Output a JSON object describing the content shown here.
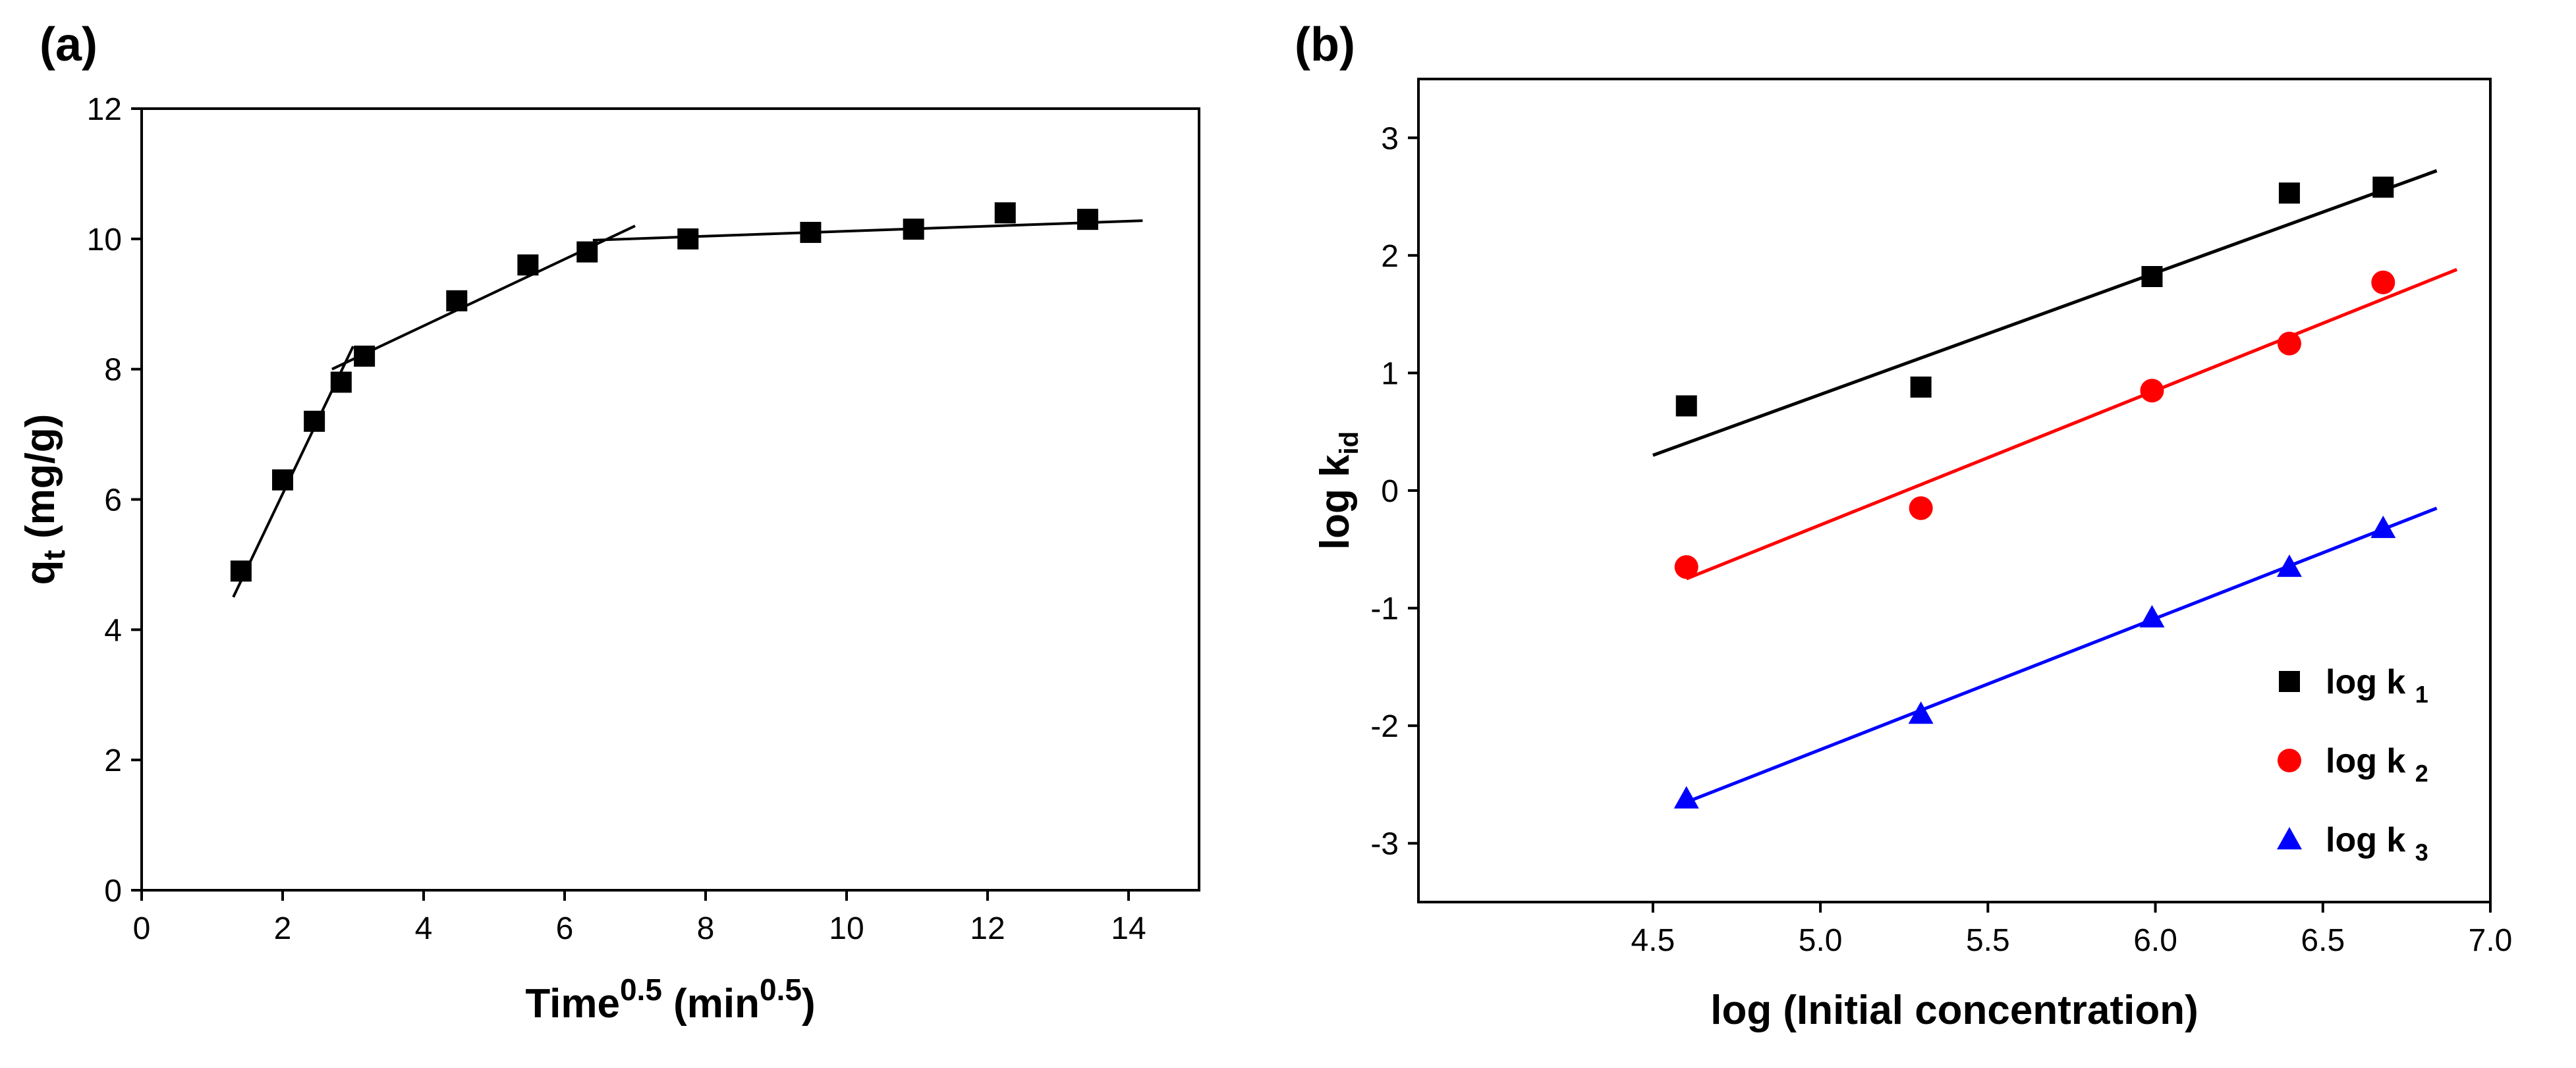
{
  "chart_data": [
    {
      "panel_label": "(a)",
      "type": "scatter",
      "xlabel_main": "Time",
      "xlabel_exp": "0.5",
      "xlabel_unit_open": " (min",
      "xlabel_unit_exp": "0.5",
      "xlabel_unit_close": ")",
      "ylabel_main": "q",
      "ylabel_sub": "t",
      "ylabel_unit": " (mg/g)",
      "xlim": [
        0,
        15
      ],
      "ylim": [
        0,
        12
      ],
      "xticks": [
        "0",
        "2",
        "4",
        "6",
        "8",
        "10",
        "12",
        "14"
      ],
      "xtick_values": [
        0,
        2,
        4,
        6,
        8,
        10,
        12,
        14
      ],
      "yticks": [
        "0",
        "2",
        "4",
        "6",
        "8",
        "10",
        "12"
      ],
      "ytick_values": [
        0,
        2,
        4,
        6,
        8,
        10,
        12
      ],
      "series": [
        {
          "name": "qt",
          "marker": "square",
          "color": "#000000",
          "x": [
            1.41,
            2.0,
            2.45,
            2.83,
            3.16,
            4.47,
            5.48,
            6.32,
            7.75,
            9.49,
            10.95,
            12.25,
            13.42
          ],
          "y": [
            4.9,
            6.3,
            7.2,
            7.8,
            8.2,
            9.05,
            9.6,
            9.8,
            10.0,
            10.1,
            10.15,
            10.4,
            10.3
          ]
        }
      ],
      "fit_lines": [
        {
          "name": "stage 1",
          "color": "#000000",
          "x": [
            1.3,
            3.0
          ],
          "y": [
            4.5,
            8.35
          ]
        },
        {
          "name": "stage 2",
          "color": "#000000",
          "x": [
            2.7,
            7.0
          ],
          "y": [
            8.0,
            10.2
          ]
        },
        {
          "name": "stage 3",
          "color": "#000000",
          "x": [
            6.4,
            14.2
          ],
          "y": [
            9.98,
            10.28
          ]
        }
      ]
    },
    {
      "panel_label": "(b)",
      "type": "scatter",
      "xlabel": "log (Initial concentration)",
      "ylabel_main": "log k",
      "ylabel_sub": "id",
      "xlim": [
        3.8,
        7.0
      ],
      "ylim": [
        -3.5,
        3.5
      ],
      "xticks": [
        "4.5",
        "5.0",
        "5.5",
        "6.0",
        "6.5",
        "7.0"
      ],
      "xtick_values": [
        4.5,
        5.0,
        5.5,
        6.0,
        6.5,
        7.0
      ],
      "yticks": [
        "-3",
        "-2",
        "-1",
        "0",
        "1",
        "2",
        "3"
      ],
      "ytick_values": [
        -3,
        -2,
        -1,
        0,
        1,
        2,
        3
      ],
      "series": [
        {
          "name": "log k",
          "sub": "1",
          "marker": "square",
          "color": "#000000",
          "x": [
            4.6,
            5.3,
            5.99,
            6.4,
            6.68
          ],
          "y": [
            0.72,
            0.88,
            1.82,
            2.53,
            2.58
          ],
          "fit": {
            "x": [
              4.5,
              6.84
            ],
            "y": [
              0.3,
              2.72
            ]
          }
        },
        {
          "name": "log k",
          "sub": "2",
          "marker": "circle",
          "color": "#ff0000",
          "x": [
            4.6,
            5.3,
            5.99,
            6.4,
            6.68
          ],
          "y": [
            -0.65,
            -0.15,
            0.85,
            1.25,
            1.77
          ],
          "fit": {
            "x": [
              4.6,
              6.9
            ],
            "y": [
              -0.75,
              1.88
            ]
          }
        },
        {
          "name": "log k",
          "sub": "3",
          "marker": "triangle",
          "color": "#0000ff",
          "x": [
            4.6,
            5.3,
            5.99,
            6.4,
            6.68
          ],
          "y": [
            -2.62,
            -1.9,
            -1.08,
            -0.65,
            -0.32
          ],
          "fit": {
            "x": [
              4.6,
              6.84
            ],
            "y": [
              -2.65,
              -0.15
            ]
          }
        }
      ],
      "legend_position": "lower-right"
    }
  ]
}
